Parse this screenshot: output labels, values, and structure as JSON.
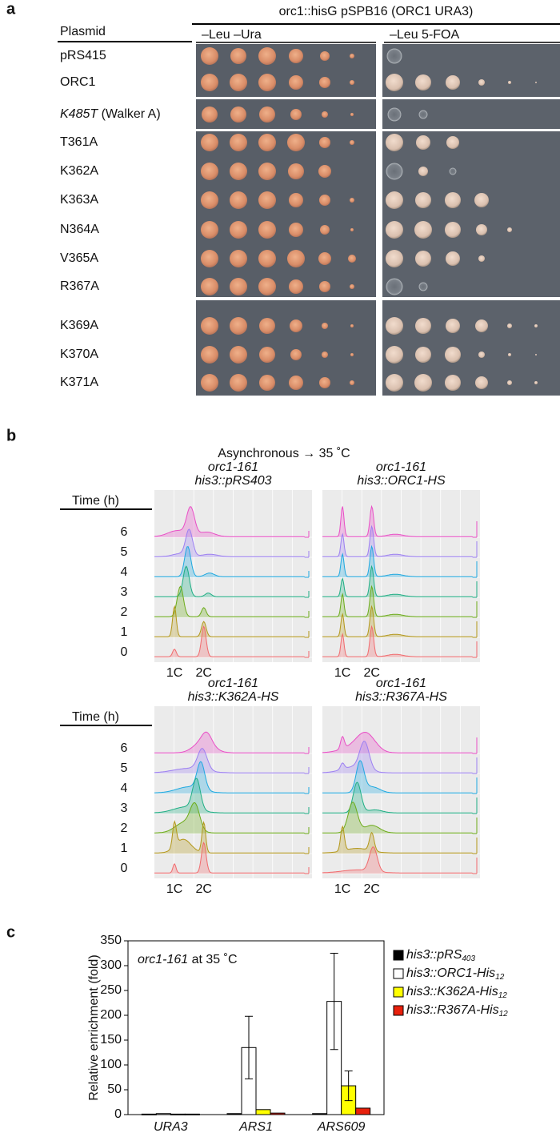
{
  "panels": {
    "a": {
      "label": "a",
      "title": "orc1::hisG pSPB16 (ORC1 URA3)",
      "plasmid_header": "Plasmid",
      "media": [
        "–Leu –Ura",
        "–Leu 5-FOA"
      ],
      "plasmids": [
        "pRS415",
        "ORC1",
        "K485T (Walker A)",
        "T361A",
        "K362A",
        "K363A",
        "N364A",
        "V365A",
        "R367A",
        "K369A",
        "K370A",
        "K371A"
      ]
    },
    "b": {
      "label": "b",
      "condition": "Asynchronous → 35 ˚C",
      "time_header": "Time (h)",
      "times": [
        6,
        5,
        4,
        3,
        2,
        1,
        0
      ],
      "peak_labels": [
        "1C",
        "2C"
      ],
      "strains": [
        [
          "orc1-161",
          "his3::pRS403"
        ],
        [
          "orc1-161",
          "his3::ORC1-HS"
        ],
        [
          "orc1-161",
          "his3::K362A-HS"
        ],
        [
          "orc1-161",
          "his3::R367A-HS"
        ]
      ]
    }
  },
  "chart_data": {
    "type": "bar",
    "panel_label": "c",
    "annotation": "orc1-161 at 35 ˚C",
    "y_label": "Relative enrichment (fold)",
    "categories": [
      "URA3",
      "ARS1",
      "ARS609"
    ],
    "series": [
      {
        "name": "his3::pRS403",
        "color": "#000000",
        "values": [
          1,
          2,
          2
        ],
        "errors": [
          null,
          null,
          null
        ]
      },
      {
        "name": "his3::ORC1-His12",
        "color": "#ffffff",
        "values": [
          2,
          135,
          228
        ],
        "errors": [
          null,
          63,
          97
        ]
      },
      {
        "name": "his3::K362A-His12",
        "color": "#ffff00",
        "values": [
          1,
          10,
          58
        ],
        "errors": [
          null,
          null,
          30
        ]
      },
      {
        "name": "his3::R367A-His12",
        "color": "#e8200c",
        "values": [
          1,
          3,
          13
        ],
        "errors": [
          null,
          null,
          null
        ]
      }
    ],
    "ylim": [
      0,
      350
    ],
    "yticks": [
      0,
      50,
      100,
      150,
      200,
      250,
      300,
      350
    ],
    "legend": "right"
  }
}
